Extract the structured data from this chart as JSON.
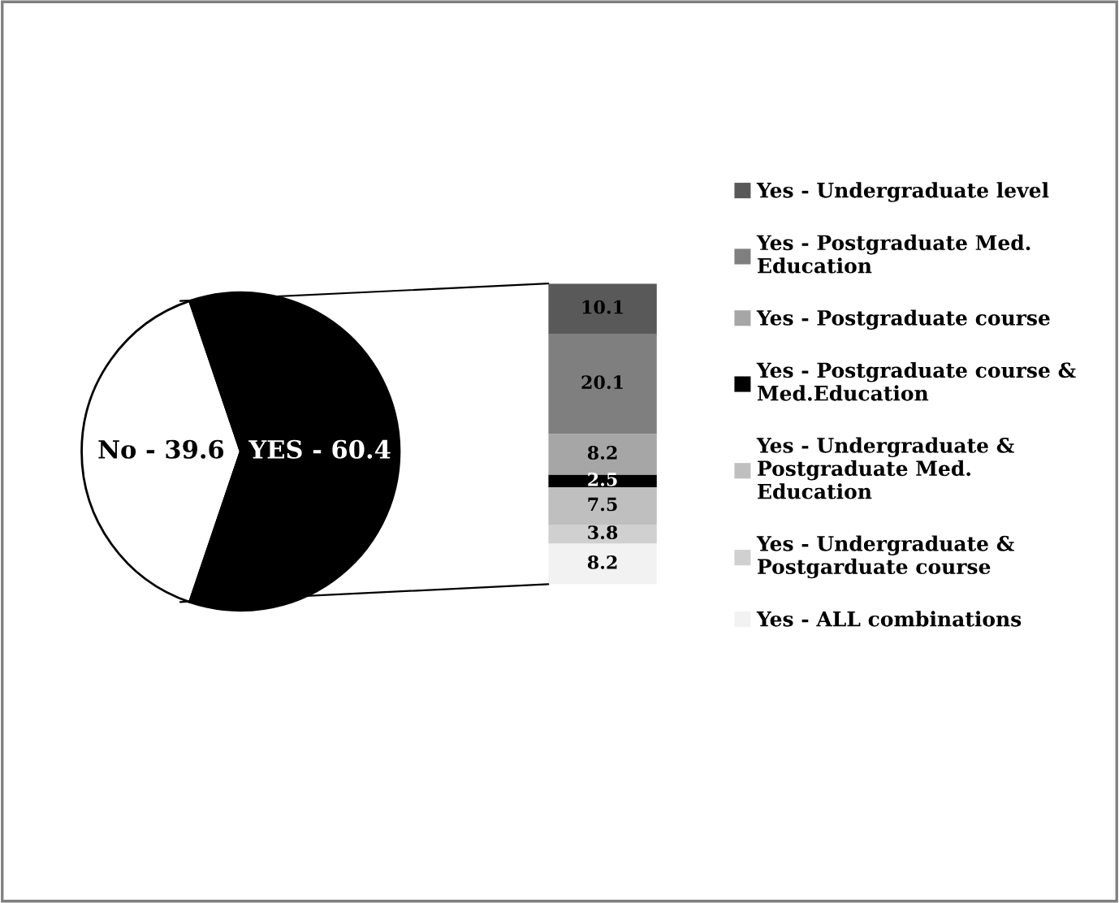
{
  "chart_data": [
    {
      "type": "pie",
      "categories": [
        "No - 39.6",
        "YES - 60.4"
      ],
      "values": [
        39.6,
        60.4
      ],
      "colors": [
        "#ffffff",
        "#000000"
      ]
    },
    {
      "type": "bar",
      "stacked": true,
      "categories": [
        null
      ],
      "data_labels": true,
      "legend": "right",
      "series": [
        {
          "name": "Yes - ALL combinations",
          "color": "#f2f2f2",
          "values": [
            8.2
          ]
        },
        {
          "name": "Yes - Undergraduate &\nPostgarduate course",
          "color": "#d0d0d0",
          "values": [
            3.8
          ]
        },
        {
          "name": "Yes - Undergraduate &\nPostgraduate Med.\nEducation",
          "color": "#bfbfbf",
          "values": [
            7.5
          ]
        },
        {
          "name": "Yes - Postgraduate course &\nMed.Education",
          "color": "#000000",
          "values": [
            2.5
          ]
        },
        {
          "name": "Yes - Postgraduate course",
          "color": "#a6a6a6",
          "values": [
            8.2
          ]
        },
        {
          "name": "Yes - Postgraduate Med.\nEducation",
          "color": "#7f7f7f",
          "values": [
            20.1
          ]
        },
        {
          "name": "Yes - Undergraduate level",
          "color": "#595959",
          "values": [
            10.1
          ]
        }
      ]
    }
  ]
}
